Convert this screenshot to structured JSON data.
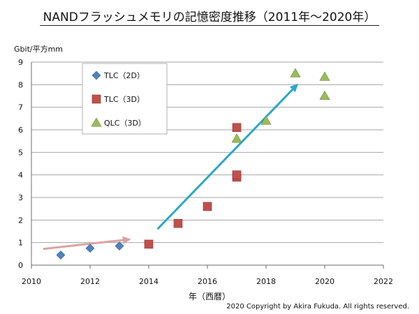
{
  "title": "NANDフラッシュメモリの記憶密度推移（2011年～2020年）",
  "copyright": "2020 Copyright by Akira Fukuda. All rights reserved.",
  "colors": {
    "tlc2d": "#4f81bd",
    "tlc3d": "#c0504d",
    "qlc3d": "#9bbb59",
    "arrow_pink": "#d9a3a3",
    "arrow_blue": "#2aa7c9",
    "grid": "#a6a6a6",
    "axis": "#6e6e6e"
  },
  "chart_data": {
    "type": "scatter",
    "title": "NANDフラッシュメモリの記憶密度推移（2011年～2020年）",
    "xlabel": "年（西暦）",
    "ylabel": "Gbit/平方mm",
    "xlim": [
      2010,
      2022
    ],
    "ylim": [
      0,
      9
    ],
    "xticks": [
      "2010",
      "2012",
      "2014",
      "2016",
      "2018",
      "2020",
      "2022"
    ],
    "yticks": [
      "0",
      "1",
      "2",
      "3",
      "4",
      "5",
      "6",
      "7",
      "8",
      "9"
    ],
    "grid": "horizontal",
    "legend_position": "top-left",
    "series": [
      {
        "name": "TLC（2D）",
        "marker": "diamond",
        "points": [
          [
            2011,
            0.45
          ],
          [
            2012,
            0.75
          ],
          [
            2013,
            0.85
          ]
        ]
      },
      {
        "name": "TLC（3D）",
        "marker": "square",
        "points": [
          [
            2014,
            0.93
          ],
          [
            2015,
            1.85
          ],
          [
            2016,
            2.6
          ],
          [
            2017,
            3.9
          ],
          [
            2017,
            4.0
          ],
          [
            2017,
            6.1
          ]
        ]
      },
      {
        "name": "QLC（3D）",
        "marker": "triangle",
        "points": [
          [
            2017,
            5.6
          ],
          [
            2018,
            6.4
          ],
          [
            2019,
            8.5
          ],
          [
            2020,
            8.35
          ],
          [
            2020,
            7.5
          ]
        ]
      }
    ],
    "annotations": [
      {
        "type": "arrow",
        "color": "pink",
        "from": [
          2010.4,
          0.72
        ],
        "to": [
          2013.4,
          1.15
        ]
      },
      {
        "type": "arrow",
        "color": "blue",
        "from": [
          2014.3,
          1.6
        ],
        "to": [
          2019.1,
          8.05
        ]
      }
    ]
  }
}
